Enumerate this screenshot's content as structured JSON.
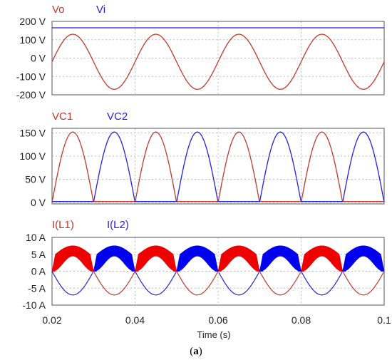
{
  "figure": {
    "caption_letter": "a"
  },
  "colors": {
    "red": "#c0392b",
    "blue": "#2222dd",
    "red_fill": "#ee0000",
    "blue_fill": "#0000ee"
  },
  "chart_data": [
    {
      "type": "line",
      "title": "",
      "xlim": [
        0.02,
        0.1
      ],
      "ylim": [
        -200,
        200
      ],
      "grid": true,
      "legend": "top-left",
      "y_ticks": [
        200,
        100,
        0,
        -100,
        -200
      ],
      "y_tick_labels": [
        "200 V",
        "100 V",
        "0 V",
        "-100 V",
        "-200 V"
      ],
      "series": [
        {
          "name": "Vo",
          "color": "red",
          "shape": "sine",
          "amplitude": 150,
          "offset": -20,
          "frequency_hz": 50,
          "phase_peak_at": 0.025
        },
        {
          "name": "Vi",
          "color": "blue",
          "shape": "constant",
          "value": 165
        }
      ]
    },
    {
      "type": "line",
      "title": "",
      "xlim": [
        0.02,
        0.1
      ],
      "ylim": [
        0,
        170
      ],
      "grid": true,
      "legend": "top-left",
      "y_ticks": [
        150,
        100,
        50,
        0
      ],
      "y_tick_labels": [
        "150 V",
        "100 V",
        "50 V",
        "0 V"
      ],
      "series": [
        {
          "name": "VC1",
          "color": "red",
          "shape": "half-sine pulses",
          "peak": 152,
          "pulse_starts": [
            0.02,
            0.04,
            0.06,
            0.08
          ],
          "pulse_width": 0.01,
          "baseline": 2
        },
        {
          "name": "VC2",
          "color": "blue",
          "shape": "half-sine pulses",
          "peak": 152,
          "pulse_starts": [
            0.03,
            0.05,
            0.07,
            0.09
          ],
          "pulse_width": 0.01,
          "baseline": 2
        }
      ]
    },
    {
      "type": "line",
      "title": "",
      "xlabel": "Time (s)",
      "xlim": [
        0.02,
        0.1
      ],
      "ylim": [
        -10,
        10
      ],
      "grid": true,
      "legend": "top-left",
      "x_ticks": [
        0.02,
        0.04,
        0.06,
        0.08,
        0.1
      ],
      "x_tick_labels": [
        "0.02",
        "0.04",
        "0.06",
        "0.08",
        "0.1"
      ],
      "y_ticks": [
        10,
        5,
        0,
        -5,
        -10
      ],
      "y_tick_labels": [
        "10 A",
        "5 A",
        "0 A",
        "-5 A",
        "-10 A"
      ],
      "series": [
        {
          "name": "I(L1)",
          "color": "red",
          "envelope_peak": 7.5,
          "ripple": 3,
          "active_starts": [
            0.02,
            0.04,
            0.06,
            0.08
          ],
          "active_width": 0.01,
          "negative_dip": -7
        },
        {
          "name": "I(L2)",
          "color": "blue",
          "envelope_peak": 7.5,
          "ripple": 3,
          "active_starts": [
            0.03,
            0.05,
            0.07,
            0.09
          ],
          "active_width": 0.01,
          "negative_dip": -7
        }
      ]
    }
  ]
}
